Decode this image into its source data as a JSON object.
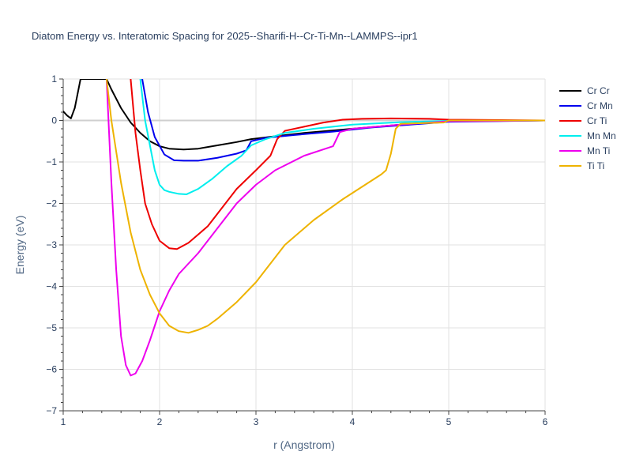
{
  "chart_data": {
    "type": "line",
    "title": "Diatom Energy vs. Interatomic Spacing for 2025--Sharifi-H--Cr-Ti-Mn--LAMMPS--ipr1",
    "xlabel": "r (Angstrom)",
    "ylabel": "Energy (eV)",
    "xlim": [
      1,
      6
    ],
    "ylim": [
      -7,
      1
    ],
    "x_ticks": [
      "1",
      "2",
      "3",
      "4",
      "5",
      "6"
    ],
    "y_ticks": [
      "1",
      "0",
      "−1",
      "−2",
      "−3",
      "−4",
      "−5",
      "−6",
      "−7"
    ],
    "grid": true,
    "legend": "top-right",
    "series": [
      {
        "name": "Cr Cr",
        "color": "#000000",
        "points": [
          [
            1.0,
            0.22
          ],
          [
            1.04,
            0.12
          ],
          [
            1.08,
            0.05
          ],
          [
            1.12,
            0.3
          ],
          [
            1.18,
            1.0
          ],
          [
            1.45,
            1.0
          ],
          [
            1.5,
            0.75
          ],
          [
            1.6,
            0.3
          ],
          [
            1.7,
            -0.05
          ],
          [
            1.8,
            -0.3
          ],
          [
            1.9,
            -0.5
          ],
          [
            2.0,
            -0.62
          ],
          [
            2.1,
            -0.68
          ],
          [
            2.25,
            -0.7
          ],
          [
            2.4,
            -0.68
          ],
          [
            2.6,
            -0.6
          ],
          [
            2.8,
            -0.52
          ],
          [
            2.95,
            -0.45
          ],
          [
            3.2,
            -0.38
          ],
          [
            3.5,
            -0.3
          ],
          [
            3.8,
            -0.24
          ],
          [
            4.0,
            -0.2
          ],
          [
            4.3,
            -0.14
          ],
          [
            4.6,
            -0.08
          ],
          [
            5.0,
            -0.01
          ],
          [
            6.0,
            0.0
          ]
        ]
      },
      {
        "name": "Cr Mn",
        "color": "#0000ee",
        "points": [
          [
            1.82,
            1.0
          ],
          [
            1.88,
            0.2
          ],
          [
            1.95,
            -0.4
          ],
          [
            2.05,
            -0.82
          ],
          [
            2.15,
            -0.96
          ],
          [
            2.25,
            -0.97
          ],
          [
            2.4,
            -0.97
          ],
          [
            2.6,
            -0.9
          ],
          [
            2.8,
            -0.8
          ],
          [
            2.9,
            -0.72
          ],
          [
            2.95,
            -0.5
          ],
          [
            3.1,
            -0.42
          ],
          [
            3.4,
            -0.35
          ],
          [
            3.8,
            -0.27
          ],
          [
            4.2,
            -0.17
          ],
          [
            4.6,
            -0.1
          ],
          [
            5.0,
            -0.03
          ],
          [
            6.0,
            0.0
          ]
        ]
      },
      {
        "name": "Cr Ti",
        "color": "#ee0000",
        "points": [
          [
            1.7,
            1.0
          ],
          [
            1.75,
            -0.3
          ],
          [
            1.8,
            -1.2
          ],
          [
            1.85,
            -2.0
          ],
          [
            1.92,
            -2.5
          ],
          [
            2.0,
            -2.9
          ],
          [
            2.1,
            -3.08
          ],
          [
            2.18,
            -3.1
          ],
          [
            2.3,
            -2.95
          ],
          [
            2.5,
            -2.55
          ],
          [
            2.8,
            -1.65
          ],
          [
            3.0,
            -1.2
          ],
          [
            3.15,
            -0.85
          ],
          [
            3.22,
            -0.45
          ],
          [
            3.3,
            -0.25
          ],
          [
            3.5,
            -0.15
          ],
          [
            3.7,
            -0.05
          ],
          [
            3.9,
            0.02
          ],
          [
            4.1,
            0.04
          ],
          [
            4.4,
            0.05
          ],
          [
            4.8,
            0.04
          ],
          [
            5.0,
            0.02
          ],
          [
            6.0,
            0.0
          ]
        ]
      },
      {
        "name": "Mn Mn",
        "color": "#00eeee",
        "points": [
          [
            1.8,
            1.0
          ],
          [
            1.85,
            0.0
          ],
          [
            1.9,
            -0.6
          ],
          [
            1.95,
            -1.2
          ],
          [
            2.0,
            -1.55
          ],
          [
            2.05,
            -1.68
          ],
          [
            2.1,
            -1.72
          ],
          [
            2.2,
            -1.77
          ],
          [
            2.28,
            -1.78
          ],
          [
            2.4,
            -1.65
          ],
          [
            2.55,
            -1.4
          ],
          [
            2.7,
            -1.1
          ],
          [
            2.85,
            -0.85
          ],
          [
            2.95,
            -0.6
          ],
          [
            3.1,
            -0.45
          ],
          [
            3.3,
            -0.3
          ],
          [
            3.6,
            -0.2
          ],
          [
            4.0,
            -0.1
          ],
          [
            4.5,
            -0.04
          ],
          [
            5.0,
            -0.01
          ],
          [
            6.0,
            0.0
          ]
        ]
      },
      {
        "name": "Mn Ti",
        "color": "#ee00ee",
        "points": [
          [
            1.45,
            1.0
          ],
          [
            1.5,
            -1.5
          ],
          [
            1.55,
            -3.6
          ],
          [
            1.6,
            -5.2
          ],
          [
            1.65,
            -5.9
          ],
          [
            1.7,
            -6.15
          ],
          [
            1.75,
            -6.1
          ],
          [
            1.82,
            -5.8
          ],
          [
            1.9,
            -5.3
          ],
          [
            2.0,
            -4.6
          ],
          [
            2.1,
            -4.1
          ],
          [
            2.2,
            -3.7
          ],
          [
            2.4,
            -3.2
          ],
          [
            2.6,
            -2.6
          ],
          [
            2.8,
            -2.0
          ],
          [
            3.0,
            -1.55
          ],
          [
            3.2,
            -1.2
          ],
          [
            3.5,
            -0.85
          ],
          [
            3.8,
            -0.62
          ],
          [
            3.87,
            -0.28
          ],
          [
            4.0,
            -0.2
          ],
          [
            4.5,
            -0.1
          ],
          [
            5.0,
            -0.02
          ],
          [
            6.0,
            0.0
          ]
        ]
      },
      {
        "name": "Ti Ti",
        "color": "#eeb300",
        "points": [
          [
            1.45,
            1.0
          ],
          [
            1.5,
            0.0
          ],
          [
            1.6,
            -1.5
          ],
          [
            1.7,
            -2.7
          ],
          [
            1.8,
            -3.6
          ],
          [
            1.9,
            -4.2
          ],
          [
            2.0,
            -4.65
          ],
          [
            2.1,
            -4.95
          ],
          [
            2.2,
            -5.08
          ],
          [
            2.3,
            -5.12
          ],
          [
            2.4,
            -5.05
          ],
          [
            2.5,
            -4.95
          ],
          [
            2.6,
            -4.78
          ],
          [
            2.8,
            -4.38
          ],
          [
            3.0,
            -3.9
          ],
          [
            3.3,
            -3.0
          ],
          [
            3.6,
            -2.4
          ],
          [
            3.9,
            -1.9
          ],
          [
            4.1,
            -1.6
          ],
          [
            4.3,
            -1.3
          ],
          [
            4.35,
            -1.2
          ],
          [
            4.4,
            -0.8
          ],
          [
            4.45,
            -0.2
          ],
          [
            4.5,
            -0.08
          ],
          [
            4.8,
            -0.06
          ],
          [
            4.95,
            -0.05
          ],
          [
            5.0,
            0.0
          ],
          [
            6.0,
            0.0
          ]
        ]
      }
    ]
  }
}
